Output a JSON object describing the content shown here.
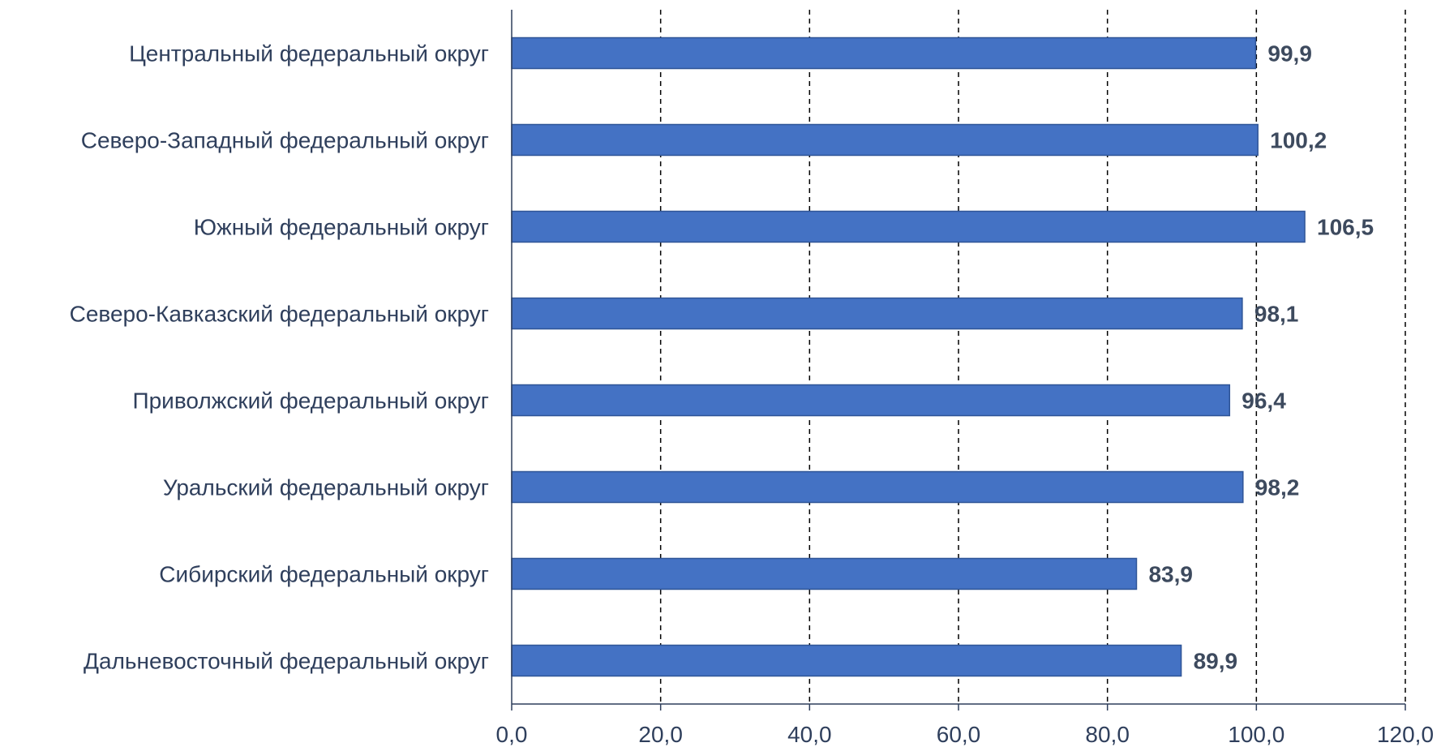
{
  "chart_data": {
    "type": "bar",
    "orientation": "horizontal",
    "categories": [
      "Центральный федеральный округ",
      "Северо-Западный федеральный округ",
      "Южный федеральный округ",
      "Северо-Кавказский федеральный округ",
      "Приволжский федеральный округ",
      "Уральский федеральный округ",
      "Сибирский федеральный округ",
      "Дальневосточный федеральный округ"
    ],
    "values": [
      99.9,
      100.2,
      106.5,
      98.1,
      96.4,
      98.2,
      83.9,
      89.9
    ],
    "value_labels": [
      "99,9",
      "100,2",
      "106,5",
      "98,1",
      "96,4",
      "98,2",
      "83,9",
      "89,9"
    ],
    "xticks": [
      0,
      20,
      40,
      60,
      80,
      100,
      120
    ],
    "xtick_labels": [
      "0,0",
      "20,0",
      "40,0",
      "60,0",
      "80,0",
      "100,0",
      "120,0"
    ],
    "xlim": [
      0,
      120
    ],
    "grid": "vertical dashed",
    "legend": "none",
    "title": "",
    "xlabel": "",
    "ylabel": "",
    "colors": {
      "bar_fill": "#4472c4",
      "bar_stroke": "#2f5597",
      "axis": "#2f3f5c",
      "grid": "#000000",
      "label_text": "#2f3f5c",
      "value_text": "#3d4a5e"
    }
  }
}
